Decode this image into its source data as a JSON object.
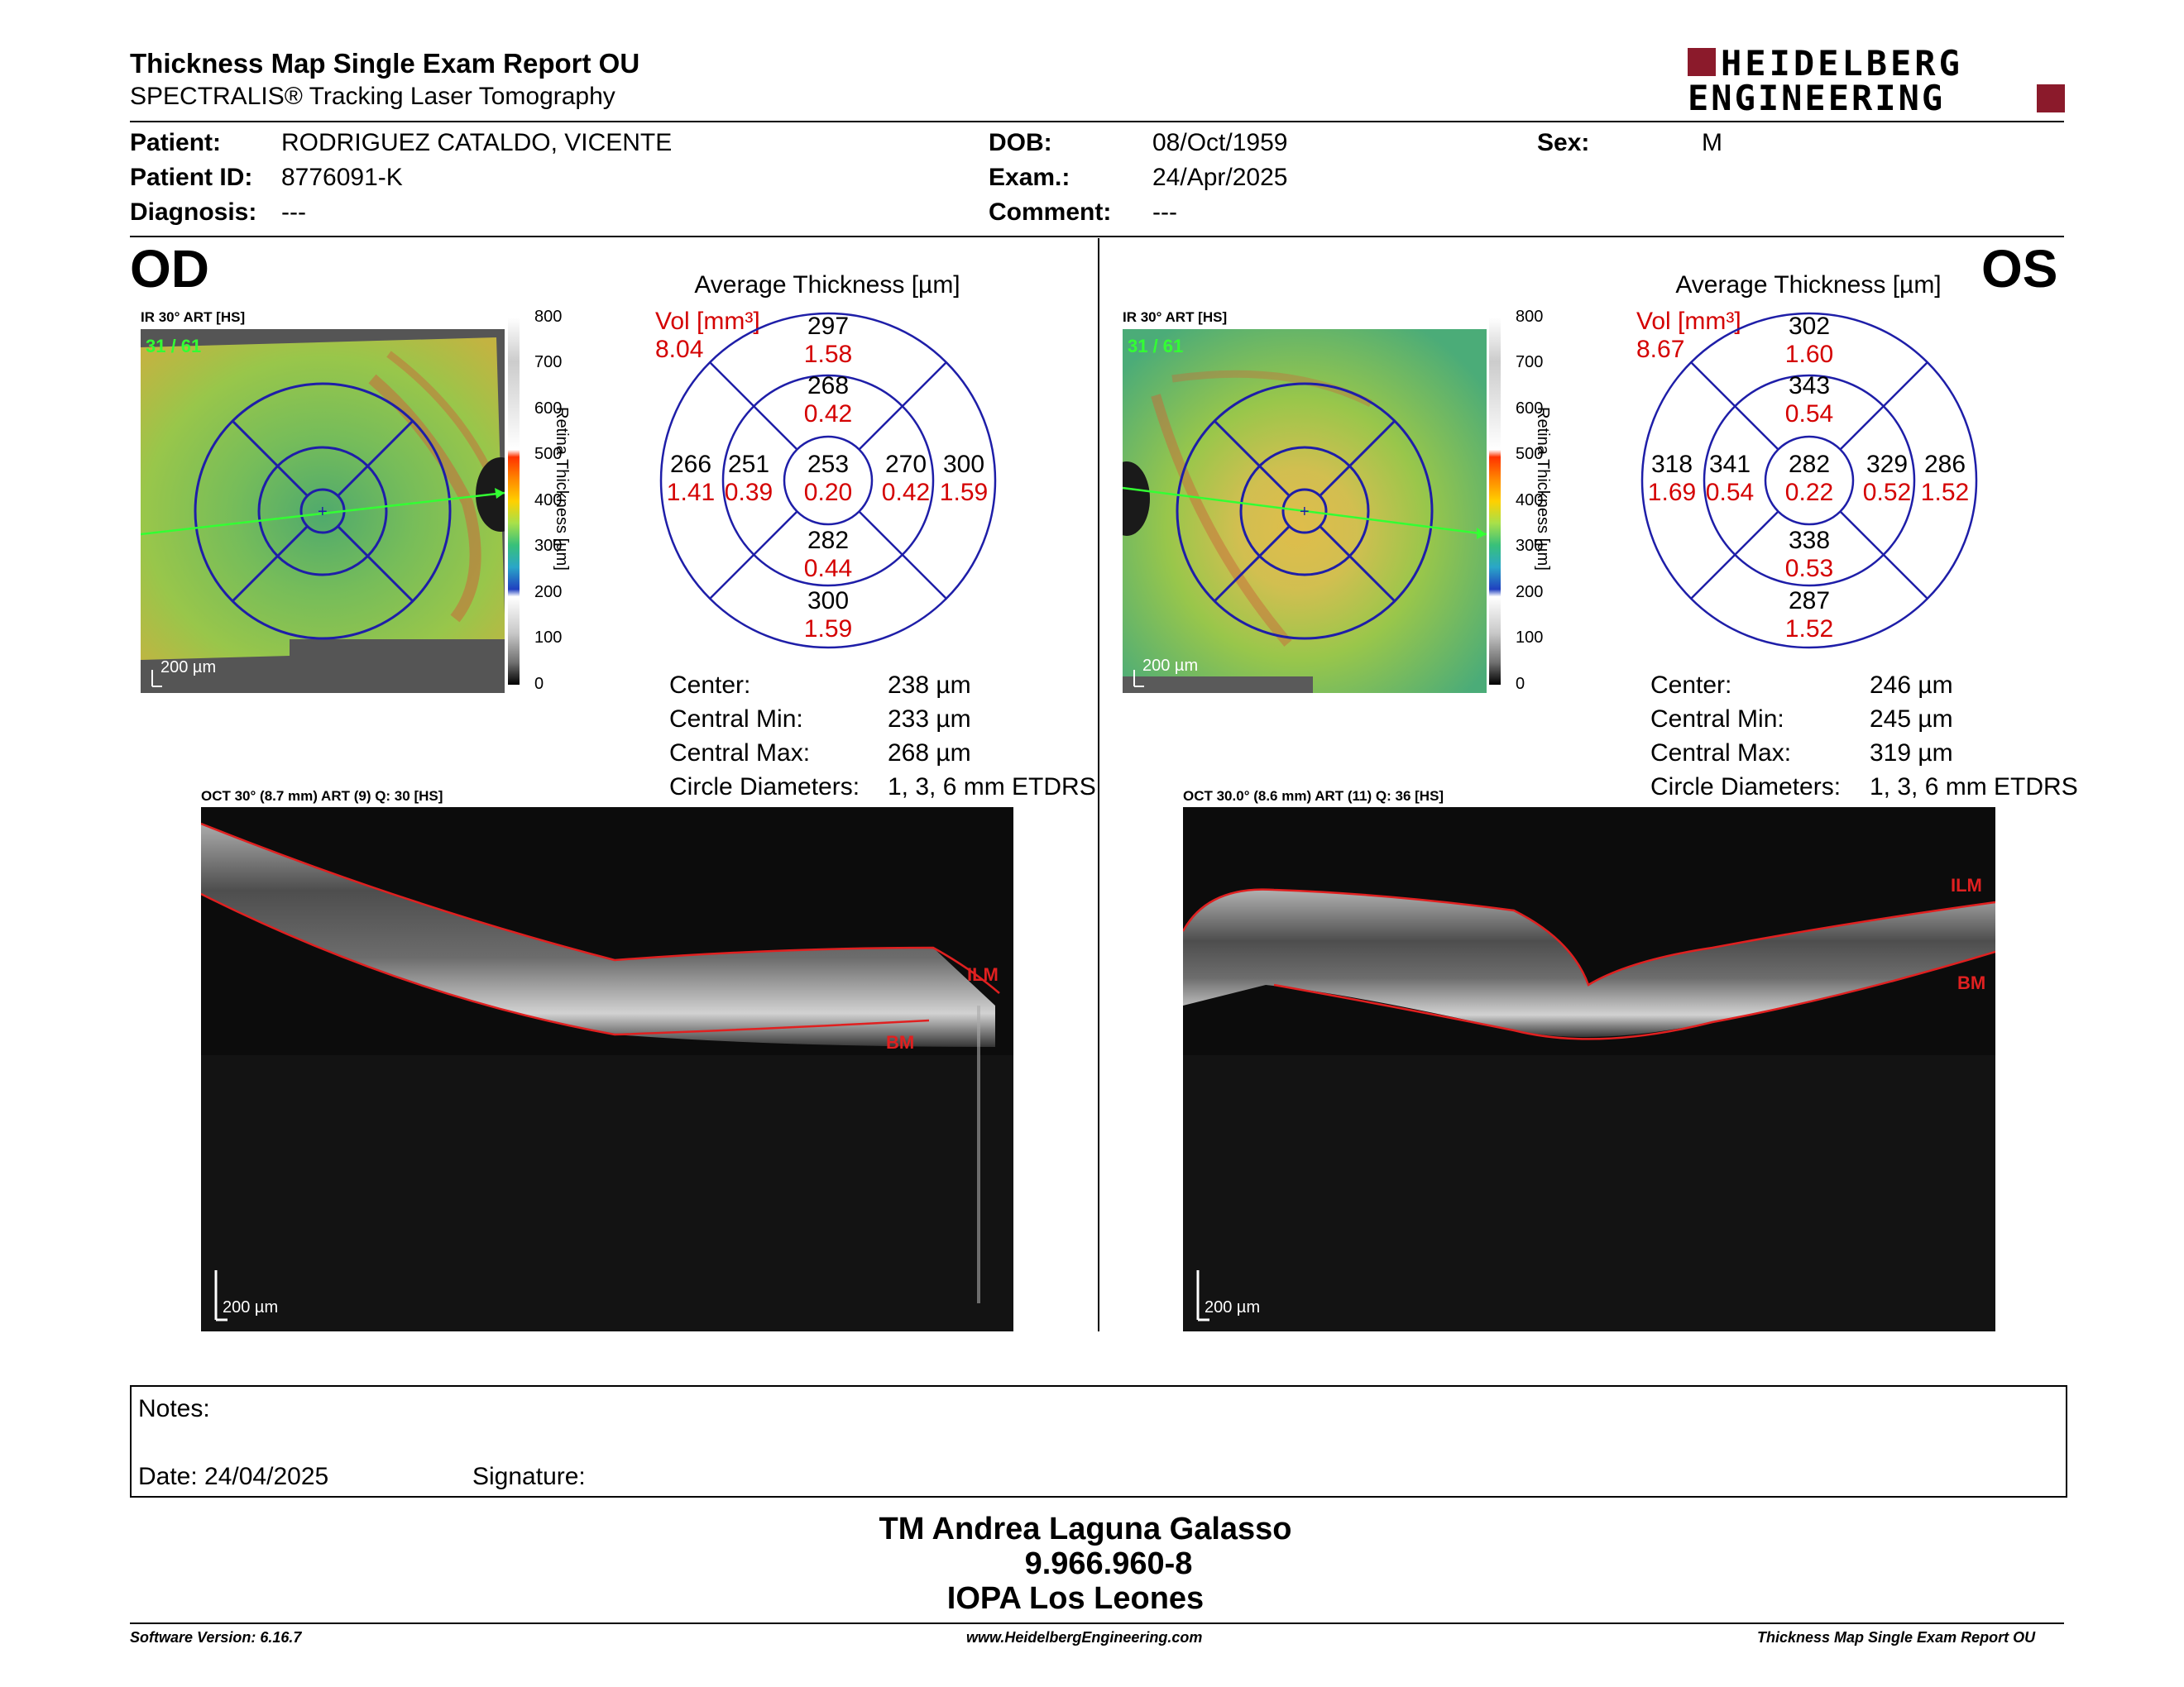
{
  "header": {
    "title": "Thickness Map Single Exam Report OU",
    "subtitle": "SPECTRALIS® Tracking Laser Tomography",
    "logo_line1": "HEIDELBERG",
    "logo_line2": "ENGINEERING",
    "logo_color": "#8b1a2b"
  },
  "patient": {
    "patient_label": "Patient:",
    "patient_value": "RODRIGUEZ CATALDO, VICENTE",
    "id_label": "Patient ID:",
    "id_value": "8776091-K",
    "diagnosis_label": "Diagnosis:",
    "diagnosis_value": "---",
    "dob_label": "DOB:",
    "dob_value": "08/Oct/1959",
    "exam_label": "Exam.:",
    "exam_value": "24/Apr/2025",
    "comment_label": "Comment:",
    "comment_value": "---",
    "sex_label": "Sex:",
    "sex_value": "M"
  },
  "od": {
    "eye": "OD",
    "ir_label": "IR 30° ART [HS]",
    "ir_overlay": "31 / 61",
    "ir_scale": "200 µm",
    "colorbar_ticks": [
      "800",
      "700",
      "600",
      "500",
      "400",
      "300",
      "200",
      "100",
      "0"
    ],
    "colorbar_title": "Retina Thickness [µm]",
    "avg_title": "Average Thickness [µm]",
    "vol_label": "Vol [mm³]",
    "vol_value": "8.04",
    "sectors": {
      "outer_sup": {
        "t": "297",
        "v": "1.58"
      },
      "inner_sup": {
        "t": "268",
        "v": "0.42"
      },
      "outer_temp": {
        "t": "266",
        "v": "1.41"
      },
      "inner_temp": {
        "t": "251",
        "v": "0.39"
      },
      "center": {
        "t": "253",
        "v": "0.20"
      },
      "inner_nas": {
        "t": "270",
        "v": "0.42"
      },
      "outer_nas": {
        "t": "300",
        "v": "1.59"
      },
      "inner_inf": {
        "t": "282",
        "v": "0.44"
      },
      "outer_inf": {
        "t": "300",
        "v": "1.59"
      }
    },
    "center_label": "Center:",
    "center_value": "238 µm",
    "cmin_label": "Central Min:",
    "cmin_value": "233 µm",
    "cmax_label": "Central Max:",
    "cmax_value": "268 µm",
    "circ_label": "Circle Diameters:",
    "circ_value": "1, 3, 6 mm ETDRS",
    "oct_label": "OCT 30° (8.7 mm) ART (9) Q: 30 [HS]",
    "oct_scale": "200 µm",
    "ilm": "ILM",
    "bm": "BM"
  },
  "os": {
    "eye": "OS",
    "ir_label": "IR 30° ART [HS]",
    "ir_overlay": "31 / 61",
    "ir_scale": "200 µm",
    "colorbar_ticks": [
      "800",
      "700",
      "600",
      "500",
      "400",
      "300",
      "200",
      "100",
      "0"
    ],
    "colorbar_title": "Retina Thickness [µm]",
    "avg_title": "Average Thickness [µm]",
    "vol_label": "Vol [mm³]",
    "vol_value": "8.67",
    "sectors": {
      "outer_sup": {
        "t": "302",
        "v": "1.60"
      },
      "inner_sup": {
        "t": "343",
        "v": "0.54"
      },
      "outer_temp": {
        "t": "318",
        "v": "1.69"
      },
      "inner_temp": {
        "t": "341",
        "v": "0.54"
      },
      "center": {
        "t": "282",
        "v": "0.22"
      },
      "inner_nas": {
        "t": "329",
        "v": "0.52"
      },
      "outer_nas": {
        "t": "286",
        "v": "1.52"
      },
      "inner_inf": {
        "t": "338",
        "v": "0.53"
      },
      "outer_inf": {
        "t": "287",
        "v": "1.52"
      }
    },
    "center_label": "Center:",
    "center_value": "246 µm",
    "cmin_label": "Central Min:",
    "cmin_value": "245 µm",
    "cmax_label": "Central Max:",
    "cmax_value": "319 µm",
    "circ_label": "Circle Diameters:",
    "circ_value": "1, 3, 6 mm ETDRS",
    "oct_label": "OCT 30.0° (8.6 mm) ART (11) Q: 36 [HS]",
    "oct_scale": "200 µm",
    "ilm": "ILM",
    "bm": "BM"
  },
  "notes": {
    "notes_label": "Notes:",
    "date_label": "Date: 24/04/2025",
    "signature_label": "Signature:"
  },
  "signature": {
    "line1": "TM Andrea Laguna Galasso",
    "line2": "9.966.960-8",
    "line3": "IOPA Los Leones"
  },
  "footer": {
    "software": "Software Version: 6.16.7",
    "website": "www.HeidelbergEngineering.com",
    "report": "Thickness Map Single Exam Report OU"
  }
}
